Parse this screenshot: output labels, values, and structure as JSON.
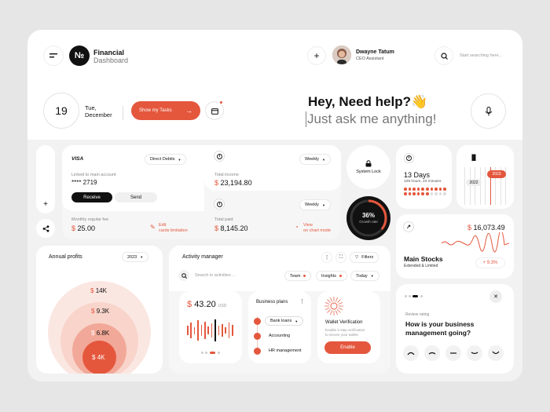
{
  "header": {
    "logo": "№",
    "title_line1": "Financial",
    "title_line2": "Dashboard",
    "user_name": "Dwayne Tatum",
    "user_role": "CEO Assistant",
    "search_placeholder": "Start searching here..."
  },
  "date": {
    "day": "19",
    "weekday": "Tue,",
    "month": "December"
  },
  "tasks_button": "Show my Tasks",
  "help": {
    "title": "Hey, Need help?👋",
    "subtitle": "Just ask me anything!"
  },
  "card": {
    "brand": "VISA",
    "filter": "Direct Debits",
    "linked_label": "Linked to main account",
    "number": "**** 2719",
    "receive": "Receive",
    "send": "Send",
    "fee_label": "Monthly regular fee",
    "fee_currency": "$",
    "fee_value": "25.00",
    "edit_line1": "Edit",
    "edit_line2": "cards limitation"
  },
  "income": {
    "filter": "Weekly",
    "label": "Total income",
    "currency": "$",
    "value": "23,194.80",
    "paid_filter": "Weekly",
    "paid_label": "Total paid",
    "paid_currency": "$",
    "paid_value": "8,145.20",
    "view_line1": "View",
    "view_line2": "on chart mode"
  },
  "system_lock": "System Lock",
  "growth": {
    "percent": "36%",
    "label": "Growth rate",
    "value": 0.36
  },
  "days": {
    "title": "13 Days",
    "detail": "109 hours, 23 minutes"
  },
  "years": {
    "y1": "2023",
    "y2": "2022"
  },
  "stocks": {
    "currency": "$",
    "value": "16,073.49",
    "title": "Main Stocks",
    "subtitle": "Extended & Limited",
    "change": "+ 9.3%"
  },
  "profits": {
    "title": "Annual profits",
    "year": "2023",
    "levels": [
      {
        "currency": "$",
        "value": "14K"
      },
      {
        "currency": "$",
        "value": "9.3K"
      },
      {
        "currency": "$",
        "value": "6.8K"
      },
      {
        "currency": "$",
        "value": "4K"
      }
    ]
  },
  "activity": {
    "title": "Activity manager",
    "filters_label": "Filters",
    "search_placeholder": "Search in activities ...",
    "tags": [
      "Team",
      "Insights",
      "Today"
    ],
    "amount_currency": "$",
    "amount": "43.20",
    "amount_unit": "USD",
    "plans_title": "Business plans",
    "plans": [
      "Bank loans",
      "Accounting",
      "HR management"
    ],
    "wallet_title": "Wallet Verification",
    "wallet_desc_1": "Enable 2-step verification",
    "wallet_desc_2": "to secure your wallet.",
    "enable": "Enable"
  },
  "rating": {
    "label": "Review rating",
    "question_1": "How is your business",
    "question_2": "management going?"
  },
  "colors": {
    "accent": "#e4573d",
    "dark": "#111111",
    "bg": "#f2f2f2"
  }
}
